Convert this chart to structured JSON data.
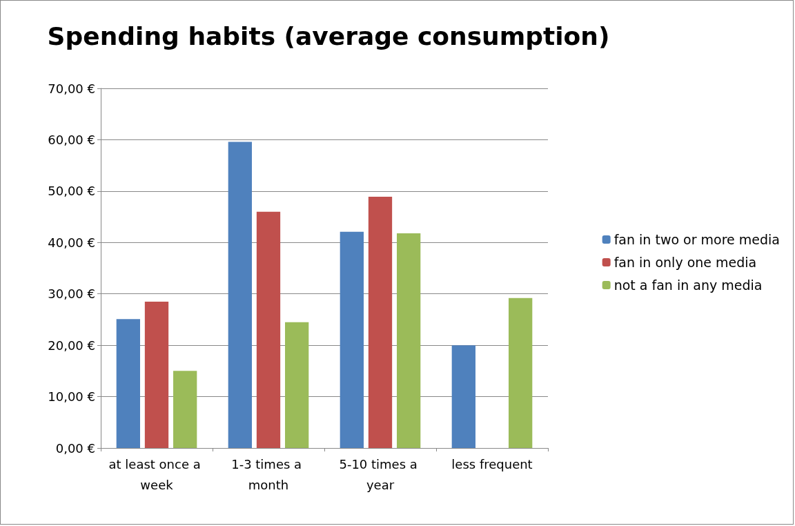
{
  "chart_data": {
    "type": "bar",
    "title": "Spending habits (average consumption)",
    "categories": [
      "at least once a week",
      "1-3 times a month",
      "5-10 times a year",
      "less frequent"
    ],
    "series": [
      {
        "name": "fan in two or more media",
        "color": "#4f81bd",
        "values": [
          25.1,
          59.6,
          42.1,
          20.0
        ]
      },
      {
        "name": "fan in only one media",
        "color": "#c0504d",
        "values": [
          28.5,
          46.0,
          48.9,
          null
        ]
      },
      {
        "name": "not a fan in any media",
        "color": "#9bbb59",
        "values": [
          15.0,
          24.5,
          41.8,
          29.2
        ]
      }
    ],
    "ylim": [
      0,
      70
    ],
    "yticks": [
      {
        "value": 0,
        "label": "0,00 €"
      },
      {
        "value": 10,
        "label": "10,00 €"
      },
      {
        "value": 20,
        "label": "20,00 €"
      },
      {
        "value": 30,
        "label": "30,00 €"
      },
      {
        "value": 40,
        "label": "40,00 €"
      },
      {
        "value": 50,
        "label": "50,00 €"
      },
      {
        "value": 60,
        "label": "60,00 €"
      },
      {
        "value": 70,
        "label": "70,00 €"
      }
    ],
    "grid": "y",
    "legend": "right"
  }
}
